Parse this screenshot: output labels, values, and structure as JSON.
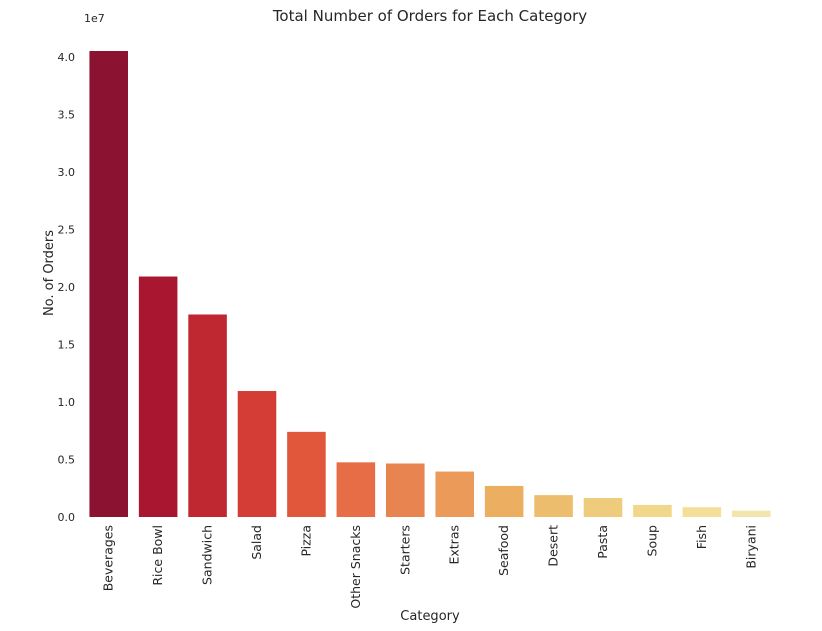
{
  "chart_data": {
    "type": "bar",
    "title": "Total Number of Orders for Each Category",
    "xlabel": "Category",
    "ylabel": "No. of Orders",
    "y_scale_note": "1e7",
    "ylim": [
      0,
      40500000
    ],
    "y_ticks": [
      0,
      5000000,
      10000000,
      15000000,
      20000000,
      25000000,
      30000000,
      35000000,
      40000000
    ],
    "y_tick_labels": [
      "0.0",
      "0.5",
      "1.0",
      "1.5",
      "2.0",
      "2.5",
      "3.0",
      "3.5",
      "4.0"
    ],
    "grid": false,
    "categories": [
      "Beverages",
      "Rice Bowl",
      "Sandwich",
      "Salad",
      "Pizza",
      "Other Snacks",
      "Starters",
      "Extras",
      "Seafood",
      "Desert",
      "Pasta",
      "Soup",
      "Fish",
      "Biryani"
    ],
    "values": [
      40500000,
      20900000,
      17600000,
      10950000,
      7400000,
      4750000,
      4650000,
      3950000,
      2700000,
      1900000,
      1650000,
      1050000,
      850000,
      550000
    ],
    "colors": [
      "#8b1230",
      "#a9162f",
      "#bf2731",
      "#d33d35",
      "#e0573c",
      "#e66d45",
      "#e8844f",
      "#eb9a59",
      "#ecaf61",
      "#ecbd6d",
      "#efcb7c",
      "#f0d78a",
      "#f3df98",
      "#f3e5ac"
    ]
  }
}
